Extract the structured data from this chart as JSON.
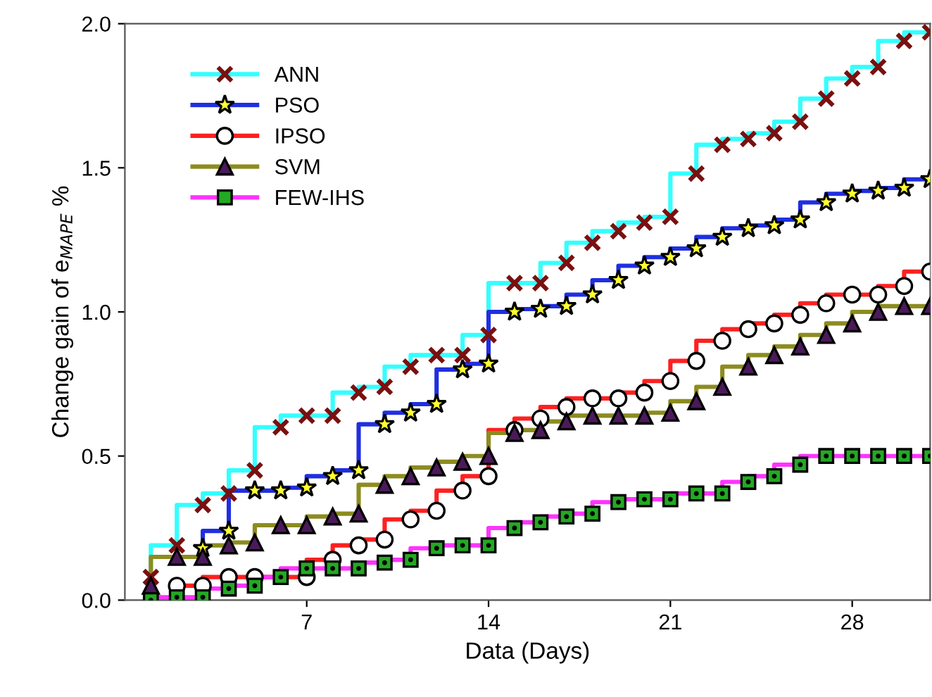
{
  "chart_data": {
    "type": "step",
    "xlabel": "Data (Days)",
    "ylabel": "Change gain of e$_{MAPE}$ %",
    "xlim": [
      0,
      31
    ],
    "xticks": [
      7,
      14,
      21,
      28
    ],
    "ylim": [
      0,
      2.0
    ],
    "yticks": [
      {
        "value": 0,
        "label": "0.0"
      },
      {
        "value": 0.5,
        "label": "0.5"
      },
      {
        "value": 1.0,
        "label": "1.0"
      },
      {
        "value": 1.5,
        "label": "1.5"
      },
      {
        "value": 2.0,
        "label": "2.0"
      }
    ],
    "grid": false,
    "legend": "top left",
    "series": [
      {
        "name": "ANN",
        "color": "#33ffff",
        "marker": "cross",
        "x": [
          1,
          2,
          3,
          4,
          5,
          6,
          7,
          8,
          9,
          10,
          11,
          12,
          13,
          14,
          15,
          16,
          17,
          18,
          19,
          20,
          21,
          22,
          23,
          24,
          25,
          26,
          27,
          28,
          29,
          30,
          31
        ],
        "values": [
          0.08,
          0.19,
          0.33,
          0.37,
          0.45,
          0.6,
          0.64,
          0.64,
          0.72,
          0.74,
          0.81,
          0.85,
          0.85,
          0.92,
          1.1,
          1.1,
          1.17,
          1.24,
          1.28,
          1.31,
          1.33,
          1.48,
          1.58,
          1.6,
          1.62,
          1.66,
          1.74,
          1.81,
          1.85,
          1.94,
          1.97
        ]
      },
      {
        "name": "PSO",
        "color": "#1f2fe0",
        "marker": "star",
        "x": [
          3,
          4,
          5,
          6,
          7,
          8,
          9,
          10,
          11,
          12,
          13,
          14,
          15,
          16,
          17,
          18,
          19,
          20,
          21,
          22,
          23,
          24,
          25,
          26,
          27,
          28,
          29,
          30,
          31
        ],
        "values": [
          0.18,
          0.24,
          0.38,
          0.38,
          0.39,
          0.43,
          0.45,
          0.61,
          0.65,
          0.68,
          0.8,
          0.82,
          1.0,
          1.01,
          1.02,
          1.06,
          1.11,
          1.16,
          1.19,
          1.22,
          1.26,
          1.29,
          1.3,
          1.32,
          1.38,
          1.41,
          1.42,
          1.43,
          1.46
        ]
      },
      {
        "name": "IPSO",
        "color": "#ff2020",
        "marker": "circle",
        "x": [
          2,
          3,
          4,
          5,
          6,
          7,
          8,
          9,
          10,
          11,
          12,
          13,
          14,
          15,
          16,
          17,
          18,
          19,
          20,
          21,
          22,
          23,
          24,
          25,
          26,
          27,
          28,
          29,
          30,
          31
        ],
        "values": [
          0.05,
          0.05,
          0.08,
          0.08,
          null,
          0.08,
          0.14,
          0.19,
          0.21,
          0.28,
          0.31,
          0.38,
          0.43,
          0.59,
          0.63,
          0.67,
          0.7,
          0.7,
          0.72,
          0.76,
          0.83,
          0.9,
          0.94,
          0.96,
          0.99,
          1.03,
          1.06,
          1.06,
          1.09,
          1.14
        ]
      },
      {
        "name": "SVM",
        "color": "#8c8c20",
        "marker": "triangle",
        "x": [
          1,
          2,
          3,
          4,
          5,
          6,
          7,
          8,
          9,
          10,
          11,
          12,
          13,
          14,
          15,
          16,
          17,
          18,
          19,
          20,
          21,
          22,
          23,
          24,
          25,
          26,
          27,
          28,
          29,
          30,
          31
        ],
        "values": [
          0.05,
          0.15,
          0.15,
          0.19,
          0.2,
          0.26,
          0.26,
          0.29,
          0.3,
          0.4,
          0.43,
          0.46,
          0.48,
          0.5,
          0.58,
          0.59,
          0.62,
          0.64,
          0.64,
          0.64,
          0.65,
          0.69,
          0.74,
          0.81,
          0.85,
          0.88,
          0.92,
          0.96,
          1.0,
          1.02,
          1.02
        ]
      },
      {
        "name": "FEW-IHS",
        "color": "#ff33ff",
        "marker": "square",
        "x": [
          1,
          2,
          3,
          4,
          5,
          6,
          7,
          8,
          9,
          10,
          11,
          12,
          13,
          14,
          15,
          16,
          17,
          18,
          19,
          20,
          21,
          22,
          23,
          24,
          25,
          26,
          27,
          28,
          29,
          30,
          31
        ],
        "values": [
          0.0,
          0.01,
          0.01,
          0.04,
          0.05,
          0.08,
          0.11,
          0.11,
          0.11,
          0.13,
          0.14,
          0.18,
          0.19,
          0.19,
          0.25,
          0.27,
          0.29,
          0.3,
          0.34,
          0.35,
          0.35,
          0.37,
          0.37,
          0.41,
          0.43,
          0.47,
          0.5,
          0.5,
          0.5,
          0.5,
          0.5
        ]
      }
    ]
  }
}
